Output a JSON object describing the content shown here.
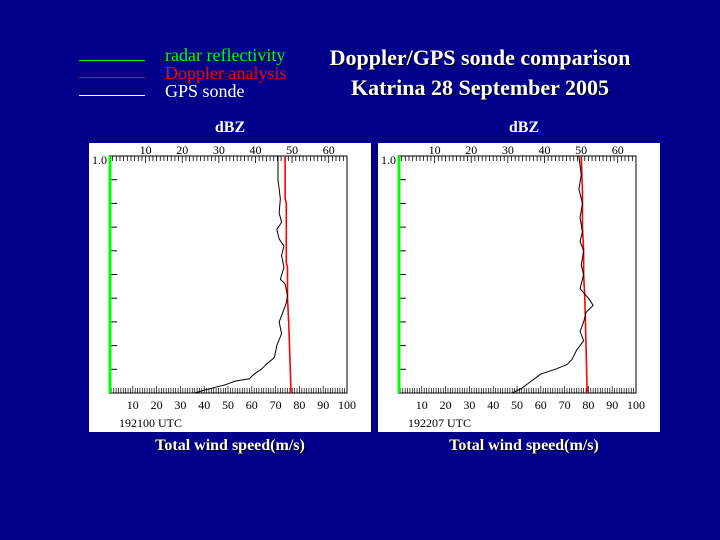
{
  "legend": [
    {
      "label": "radar reflectivity",
      "color": "#00ff00"
    },
    {
      "label": "Doppler analysis",
      "color": "#ff0000"
    },
    {
      "label": "GPS sonde",
      "color": "#ffffff"
    }
  ],
  "title": {
    "line1": "Doppler/GPS sonde comparison",
    "line2": "Katrina 28 September 2005"
  },
  "chart_data": [
    {
      "type": "line",
      "top_axis_label": "dBZ",
      "xlabel": "Total wind speed(m/s)",
      "time_label": "192100 UTC",
      "y_tick_label": "1.0",
      "xlim_bottom": [
        0,
        100
      ],
      "bottom_ticks": [
        10,
        20,
        30,
        40,
        50,
        60,
        70,
        80,
        90,
        100
      ],
      "xlim_top": [
        0,
        65
      ],
      "top_ticks": [
        10,
        20,
        30,
        40,
        50,
        60
      ],
      "ylim": [
        0,
        1
      ],
      "series": [
        {
          "name": "radar reflectivity",
          "color": "#00ff00",
          "x": [
            0,
            0
          ],
          "y": [
            0,
            1
          ]
        },
        {
          "name": "Doppler analysis",
          "color": "#ff0000",
          "x": [
            74,
            74,
            74.5,
            74.5,
            75,
            75,
            75.5,
            76,
            76.5
          ],
          "y": [
            1.0,
            0.82,
            0.8,
            0.55,
            0.53,
            0.4,
            0.3,
            0.15,
            0.0
          ]
        },
        {
          "name": "GPS sonde",
          "color": "#000000",
          "x": [
            71,
            71,
            72,
            71.5,
            72.5,
            70.5,
            71.5,
            73.5,
            72.5,
            73.5,
            72,
            74,
            75,
            74.5,
            73,
            71.5,
            72.5,
            70.5,
            69.5,
            66,
            64,
            61,
            59,
            53,
            49,
            45,
            40,
            36
          ],
          "y": [
            1.0,
            0.9,
            0.82,
            0.76,
            0.72,
            0.69,
            0.65,
            0.62,
            0.58,
            0.53,
            0.48,
            0.46,
            0.41,
            0.38,
            0.34,
            0.3,
            0.25,
            0.2,
            0.15,
            0.12,
            0.1,
            0.08,
            0.06,
            0.05,
            0.035,
            0.025,
            0.012,
            0.0
          ]
        }
      ]
    },
    {
      "type": "line",
      "top_axis_label": "dBZ",
      "xlabel": "Total wind speed(m/s)",
      "time_label": "192207 UTC",
      "y_tick_label": "1.0",
      "xlim_bottom": [
        0,
        100
      ],
      "bottom_ticks": [
        10,
        20,
        30,
        40,
        50,
        60,
        70,
        80,
        90,
        100
      ],
      "xlim_top": [
        0,
        65
      ],
      "top_ticks": [
        10,
        20,
        30,
        40,
        50,
        60
      ],
      "ylim": [
        0,
        1
      ],
      "series": [
        {
          "name": "radar reflectivity",
          "color": "#00ff00",
          "x": [
            0,
            0
          ],
          "y": [
            0,
            1
          ]
        },
        {
          "name": "Doppler analysis",
          "color": "#ff0000",
          "x": [
            77,
            77.5,
            77.5,
            78,
            78,
            78.5,
            79,
            79.5
          ],
          "y": [
            1.0,
            0.85,
            0.7,
            0.6,
            0.5,
            0.4,
            0.2,
            0.0
          ]
        },
        {
          "name": "GPS sonde",
          "color": "#000000",
          "x": [
            76,
            77,
            76,
            77.5,
            76.5,
            77.5,
            76.5,
            78,
            77,
            78,
            76.5,
            80,
            82,
            79,
            78,
            76.5,
            78,
            75,
            73,
            71,
            66,
            60,
            56,
            52,
            48
          ],
          "y": [
            1.0,
            0.92,
            0.86,
            0.8,
            0.74,
            0.68,
            0.64,
            0.6,
            0.54,
            0.5,
            0.44,
            0.4,
            0.37,
            0.34,
            0.3,
            0.26,
            0.22,
            0.18,
            0.14,
            0.12,
            0.1,
            0.08,
            0.05,
            0.02,
            0.0
          ]
        }
      ]
    }
  ]
}
